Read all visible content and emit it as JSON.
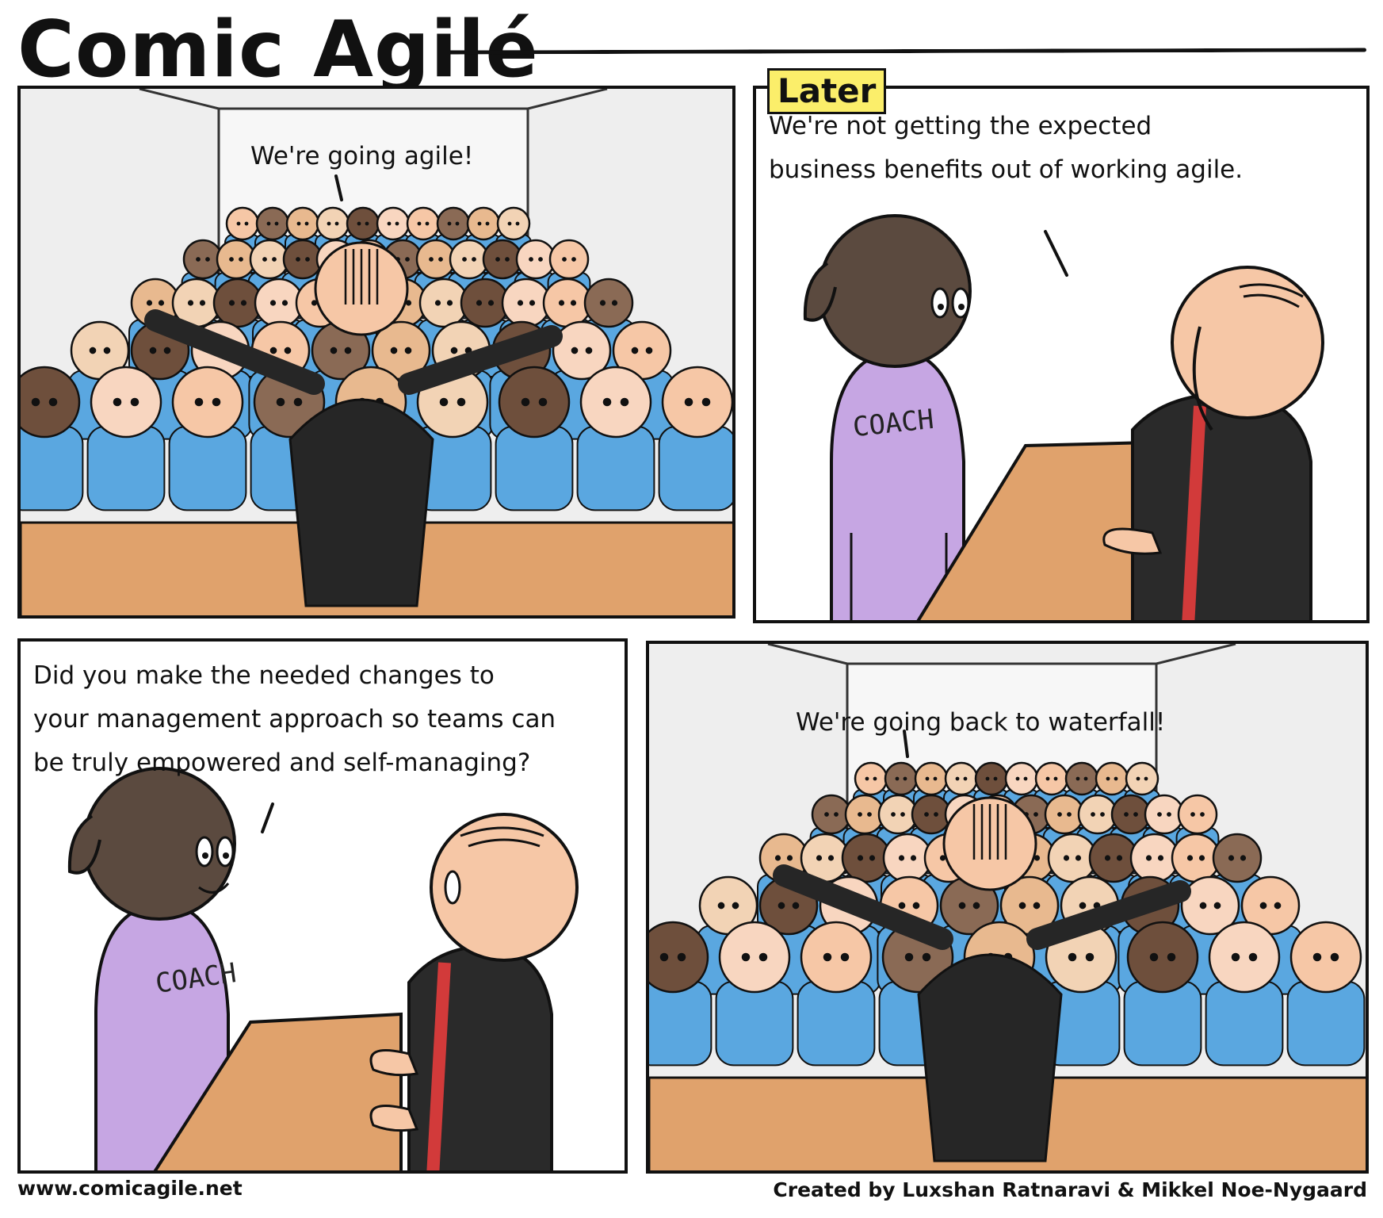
{
  "comic": {
    "title": "Comic Agilé",
    "footer_url": "www.comicagile.net",
    "footer_credit": "Created by Luxshan Ratnaravi & Mikkel Noe-Nygaard"
  },
  "panels": [
    {
      "speech": "We're going agile!"
    },
    {
      "caption": "Later",
      "speech_lines": [
        "We're not getting the expected",
        "business benefits out of working agile."
      ],
      "shirt_text": "COACH"
    },
    {
      "speech_lines": [
        "Did you make the needed changes to",
        "your management approach so teams can",
        "be truly empowered and self-managing?"
      ],
      "shirt_text": "COACH"
    },
    {
      "speech": "We're going back to waterfall!"
    }
  ],
  "colors": {
    "shirt_blue": "#5aa7e0",
    "coach_purple": "#c6a6e3",
    "suit_black": "#262626",
    "skin": "#f6c7a6",
    "desk": "#e0a26c",
    "tag_yellow": "#fbee6a"
  }
}
